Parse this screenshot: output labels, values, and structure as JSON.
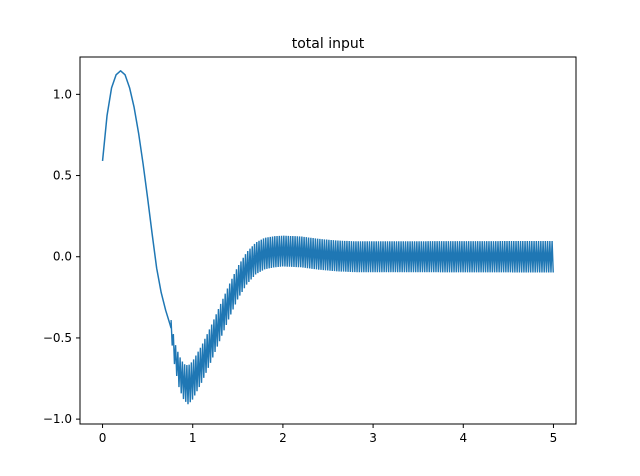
{
  "chart_data": {
    "type": "line",
    "title": "total input",
    "xlabel": "",
    "ylabel": "",
    "xlim": [
      -0.25,
      5.25
    ],
    "ylim": [
      -1.03,
      1.23
    ],
    "xticks": [
      0,
      1,
      2,
      3,
      4,
      5
    ],
    "xtick_labels": [
      "0",
      "1",
      "2",
      "3",
      "4",
      "5"
    ],
    "yticks": [
      -1.0,
      -0.5,
      0.0,
      0.5,
      1.0
    ],
    "ytick_labels": [
      "−1.0",
      "−0.5",
      "0.0",
      "0.5",
      "1.0"
    ],
    "grid": false,
    "legend": "none",
    "series": [
      {
        "color": "#1f77b4",
        "points": [
          {
            "x": 0.0,
            "y": 0.59
          },
          {
            "x": 0.05,
            "y": 0.87
          },
          {
            "x": 0.1,
            "y": 1.04
          },
          {
            "x": 0.15,
            "y": 1.12
          },
          {
            "x": 0.2,
            "y": 1.145
          },
          {
            "x": 0.25,
            "y": 1.12
          },
          {
            "x": 0.3,
            "y": 1.04
          },
          {
            "x": 0.35,
            "y": 0.92
          },
          {
            "x": 0.4,
            "y": 0.76
          },
          {
            "x": 0.45,
            "y": 0.57
          },
          {
            "x": 0.5,
            "y": 0.36
          },
          {
            "x": 0.55,
            "y": 0.14
          },
          {
            "x": 0.6,
            "y": -0.07
          },
          {
            "x": 0.65,
            "y": -0.22
          },
          {
            "x": 0.7,
            "y": -0.33
          },
          {
            "x": 0.75,
            "y": -0.42
          },
          {
            "x": 0.76,
            "y": -0.44
          }
        ]
      }
    ],
    "oscillation_band": {
      "color": "#1f77b4",
      "center": [
        {
          "x": 0.76,
          "y": -0.44
        },
        {
          "x": 0.8,
          "y": -0.6
        },
        {
          "x": 0.85,
          "y": -0.71
        },
        {
          "x": 0.9,
          "y": -0.77
        },
        {
          "x": 0.95,
          "y": -0.79
        },
        {
          "x": 1.0,
          "y": -0.76
        },
        {
          "x": 1.1,
          "y": -0.66
        },
        {
          "x": 1.2,
          "y": -0.54
        },
        {
          "x": 1.3,
          "y": -0.41
        },
        {
          "x": 1.4,
          "y": -0.28
        },
        {
          "x": 1.5,
          "y": -0.16
        },
        {
          "x": 1.6,
          "y": -0.07
        },
        {
          "x": 1.7,
          "y": -0.01
        },
        {
          "x": 1.8,
          "y": 0.02
        },
        {
          "x": 1.9,
          "y": 0.03
        },
        {
          "x": 2.0,
          "y": 0.035
        },
        {
          "x": 2.2,
          "y": 0.03
        },
        {
          "x": 2.4,
          "y": 0.015
        },
        {
          "x": 2.6,
          "y": 0.005
        },
        {
          "x": 2.8,
          "y": 0.0
        },
        {
          "x": 3.0,
          "y": 0.0
        },
        {
          "x": 4.0,
          "y": 0.0
        },
        {
          "x": 5.0,
          "y": 0.0
        }
      ],
      "amplitude": [
        {
          "x": 0.76,
          "y": 0.05
        },
        {
          "x": 0.85,
          "y": 0.1
        },
        {
          "x": 0.95,
          "y": 0.12
        },
        {
          "x": 1.2,
          "y": 0.11
        },
        {
          "x": 1.5,
          "y": 0.1
        },
        {
          "x": 2.0,
          "y": 0.095
        },
        {
          "x": 3.0,
          "y": 0.095
        },
        {
          "x": 5.0,
          "y": 0.097
        }
      ]
    }
  }
}
